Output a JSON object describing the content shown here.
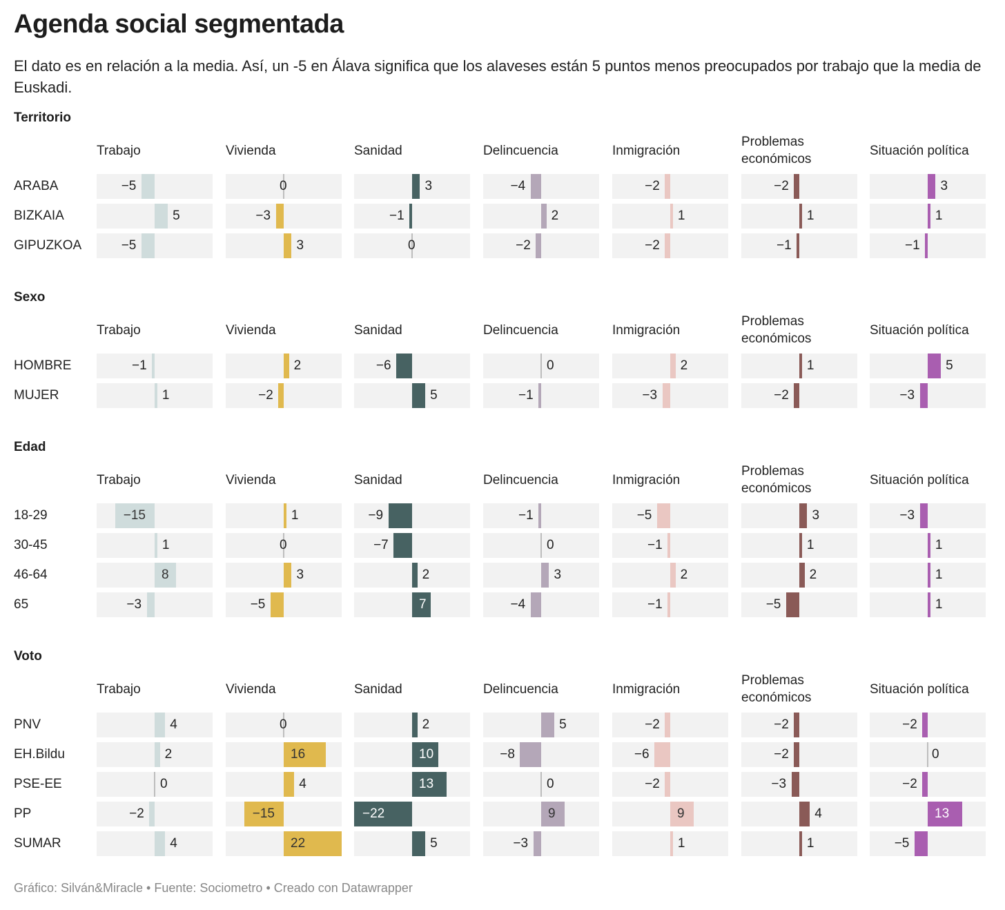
{
  "title": "Agenda social segmentada",
  "subtitle": "El dato es en relación a la media. Así, un -5 en Álava significa que los alaveses están 5 puntos menos preocupados por trabajo que la media de Euskadi.",
  "footer": "Gráfico: Silván&Miracle • Fuente: Sociometro • Creado con Datawrapper",
  "chart_data": {
    "type": "bar",
    "categories": [
      "Trabajo",
      "Vivienda",
      "Sanidad",
      "Delincuencia",
      "Inmigración",
      "Problemas económicos",
      "Situación política"
    ],
    "colors": [
      "#cfdcdc",
      "#e0b94e",
      "#476262",
      "#b4a7b8",
      "#eac7c2",
      "#8a5a57",
      "#a95eb0"
    ],
    "xlim": [
      -22,
      22
    ],
    "groups": [
      {
        "name": "Territorio",
        "rows": [
          {
            "label": "ARABA",
            "values": [
              -5,
              0,
              3,
              -4,
              -2,
              -2,
              3
            ]
          },
          {
            "label": "BIZKAIA",
            "values": [
              5,
              -3,
              -1,
              2,
              1,
              1,
              1
            ]
          },
          {
            "label": "GIPUZKOA",
            "values": [
              -5,
              3,
              0,
              -2,
              -2,
              -1,
              -1
            ]
          }
        ]
      },
      {
        "name": "Sexo",
        "rows": [
          {
            "label": "HOMBRE",
            "values": [
              -1,
              2,
              -6,
              0,
              2,
              1,
              5
            ]
          },
          {
            "label": "MUJER",
            "values": [
              1,
              -2,
              5,
              -1,
              -3,
              -2,
              -3
            ]
          }
        ]
      },
      {
        "name": "Edad",
        "rows": [
          {
            "label": "18-29",
            "values": [
              -15,
              1,
              -9,
              -1,
              -5,
              3,
              -3
            ]
          },
          {
            "label": "30-45",
            "values": [
              1,
              0,
              -7,
              0,
              -1,
              1,
              1
            ]
          },
          {
            "label": "46-64",
            "values": [
              8,
              3,
              2,
              3,
              2,
              2,
              1
            ]
          },
          {
            "label": "65",
            "values": [
              -3,
              -5,
              7,
              -4,
              -1,
              -5,
              1
            ]
          }
        ]
      },
      {
        "name": "Voto",
        "rows": [
          {
            "label": "PNV",
            "values": [
              4,
              0,
              2,
              5,
              -2,
              -2,
              -2
            ]
          },
          {
            "label": "EH.Bildu",
            "values": [
              2,
              16,
              10,
              -8,
              -6,
              -2,
              0
            ]
          },
          {
            "label": "PSE-EE",
            "values": [
              0,
              4,
              13,
              0,
              -2,
              -3,
              -2
            ]
          },
          {
            "label": "PP",
            "values": [
              -2,
              -15,
              -22,
              9,
              9,
              4,
              13
            ]
          },
          {
            "label": "SUMAR",
            "values": [
              4,
              22,
              5,
              -3,
              1,
              1,
              -5
            ]
          }
        ]
      }
    ]
  }
}
